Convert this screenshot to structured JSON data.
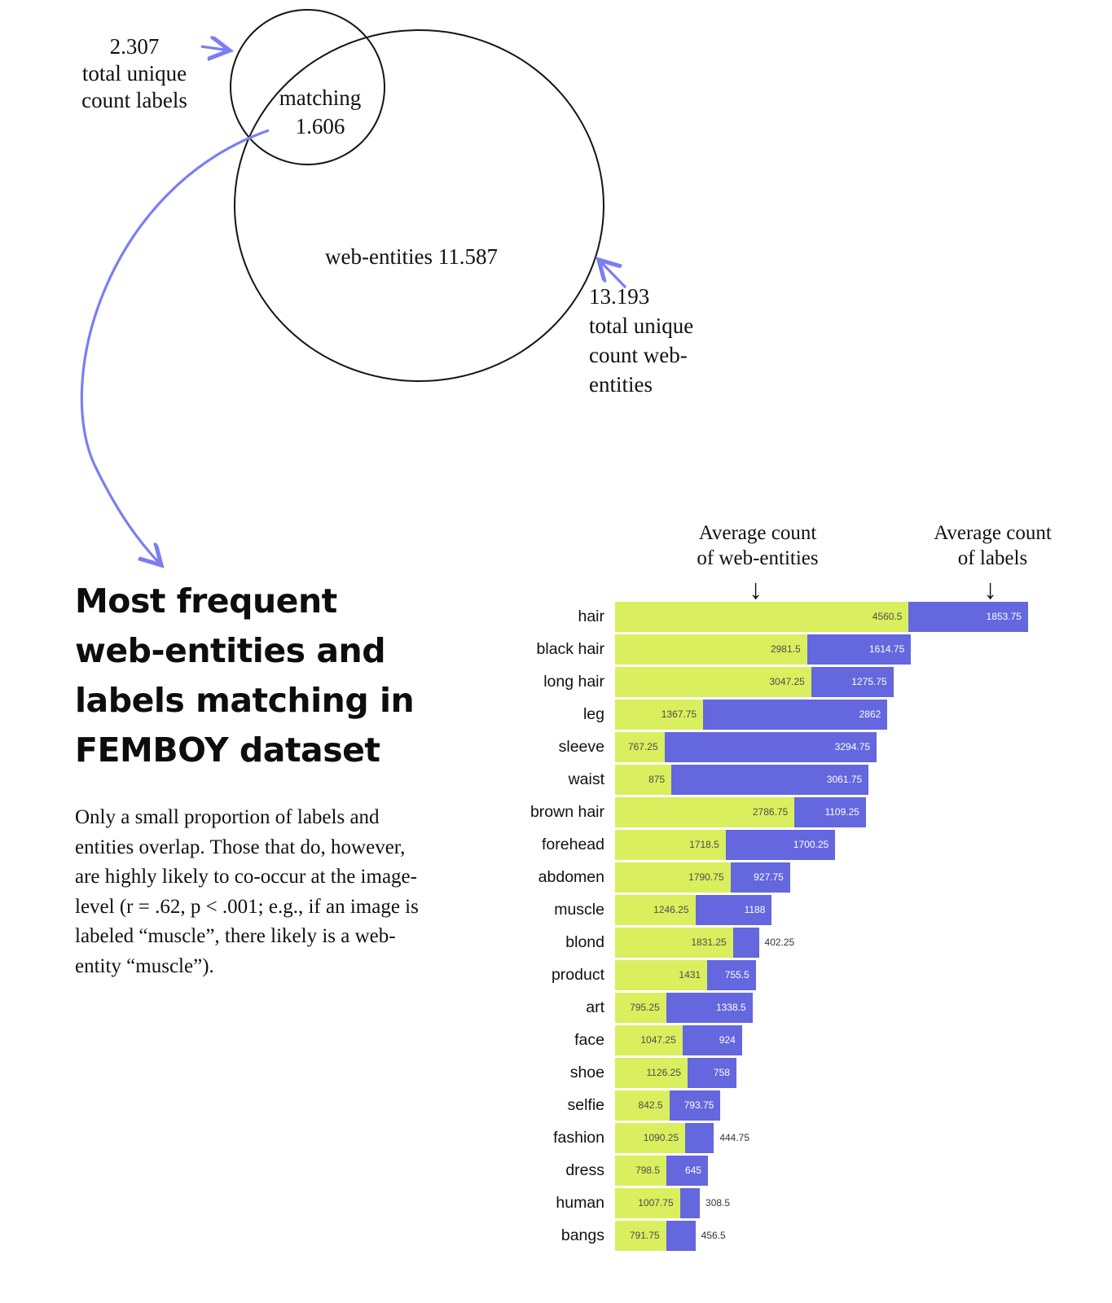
{
  "venn": {
    "left_annotation": {
      "value": "2.307",
      "text": "total unique\ncount labels"
    },
    "overlap_label": "matching\n1.606",
    "large_circle_label": "web-entities 11.587",
    "right_annotation": {
      "value": "13.193",
      "text": "total unique\ncount web-\nentities"
    }
  },
  "headline": "Most frequent\nweb-entities and\nlabels matching in\nFEMBOY dataset",
  "paragraph": "Only a small proportion of labels and entities overlap. Those that do, however, are highly likely to co-occur at the image-level (r = .62, p < .001; e.g., if an image is labeled “muscle”, there likely is a web-entity “muscle”).",
  "chart": {
    "header_web_entities": "Average count\nof web-entities",
    "header_labels": "Average count\nof labels",
    "down_arrow_icon": "↓"
  },
  "chart_data": {
    "type": "bar",
    "orientation": "horizontal",
    "stacked": true,
    "title": "Most frequent web-entities and labels matching in FEMBOY dataset",
    "categories": [
      "hair",
      "black hair",
      "long hair",
      "leg",
      "sleeve",
      "waist",
      "brown hair",
      "forehead",
      "abdomen",
      "muscle",
      "blond",
      "product",
      "art",
      "face",
      "shoe",
      "selfie",
      "fashion",
      "dress",
      "human",
      "bangs"
    ],
    "series": [
      {
        "name": "Average count of web-entities",
        "color": "#d9ef5e",
        "values": [
          4560.5,
          2981.5,
          3047.25,
          1367.75,
          767.25,
          875,
          2786.75,
          1718.5,
          1790.75,
          1246.25,
          1831.25,
          1431,
          795.25,
          1047.25,
          1126.25,
          842.5,
          1090.25,
          798.5,
          1007.75,
          791.75
        ]
      },
      {
        "name": "Average count of labels",
        "color": "#6467de",
        "values": [
          1853.75,
          1614.75,
          1275.75,
          2862,
          3294.75,
          3061.75,
          1109.25,
          1700.25,
          927.75,
          1188,
          402.25,
          755.5,
          1338.5,
          924,
          758,
          793.75,
          444.75,
          645,
          308.5,
          456.5
        ]
      }
    ],
    "value_labels": true,
    "xlim": [
      0,
      6500
    ],
    "grid": false,
    "legend_position": "top-annotations"
  },
  "colors": {
    "green": "#d9ef5e",
    "purple": "#6467de",
    "arrow": "#7b7ef2",
    "ink": "#111111"
  }
}
